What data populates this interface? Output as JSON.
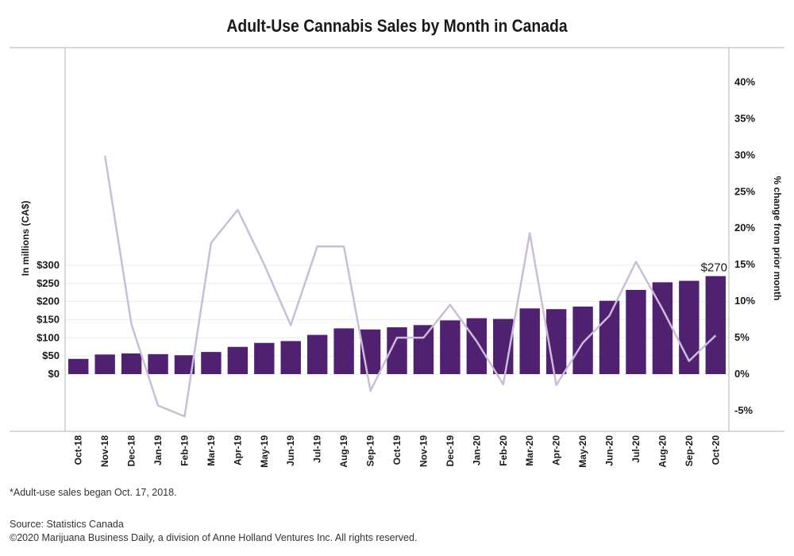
{
  "chart_data": {
    "type": "bar",
    "title": "Adult-Use Cannabis Sales by Month in Canada",
    "ylabel": "In millions (CA$)",
    "y2label": "% change from prior month",
    "categories": [
      "Oct-18",
      "Nov-18",
      "Dec-18",
      "Jan-19",
      "Feb-19",
      "Mar-19",
      "Apr-19",
      "May-19",
      "Jun-19",
      "Jul-19",
      "Aug-19",
      "Sep-19",
      "Oct-19",
      "Nov-19",
      "Dec-19",
      "Jan-20",
      "Feb-20",
      "Mar-20",
      "Apr-20",
      "May-20",
      "Jun-20",
      "Jul-20",
      "Aug-20",
      "Sep-20",
      "Oct-20"
    ],
    "series": [
      {
        "type": "bar",
        "axis": "left",
        "color": "#4f2170",
        "values": [
          42,
          54,
          57,
          55,
          52,
          61,
          75,
          86,
          91,
          108,
          126,
          123,
          129,
          135,
          148,
          154,
          152,
          181,
          179,
          186,
          202,
          232,
          253,
          257,
          270
        ]
      },
      {
        "type": "line",
        "axis": "right",
        "color": "#c9bdd8",
        "values": [
          null,
          29.9,
          6.8,
          -4.3,
          -5.8,
          18.0,
          22.5,
          15.0,
          6.7,
          17.5,
          17.5,
          -2.3,
          5.0,
          5.0,
          9.5,
          4.5,
          -1.4,
          19.3,
          -1.5,
          4.3,
          8.0,
          15.4,
          8.9,
          1.8,
          5.3
        ]
      }
    ],
    "ylim": [
      0,
      300
    ],
    "yticks": [
      0,
      50,
      100,
      150,
      200,
      250,
      300
    ],
    "ytick_labels": [
      "$0",
      "$50",
      "$100",
      "$150",
      "$200",
      "$250",
      "$300"
    ],
    "y2lim": [
      -5,
      40
    ],
    "y2ticks": [
      -5,
      0,
      5,
      10,
      15,
      20,
      25,
      30,
      35,
      40
    ],
    "y2tick_labels": [
      "-5%",
      "0%",
      "5%",
      "10%",
      "15%",
      "20%",
      "25%",
      "30%",
      "35%",
      "40%"
    ],
    "annotation": {
      "category": "Oct-20",
      "text": "$270"
    },
    "grid": true
  },
  "notes": {
    "footnote": "*Adult-use sales began Oct. 17, 2018.",
    "source": "Source: Statistics Canada",
    "copyright": "©2020 Marijuana Business Daily, a division of Anne Holland Ventures Inc. All rights reserved."
  }
}
